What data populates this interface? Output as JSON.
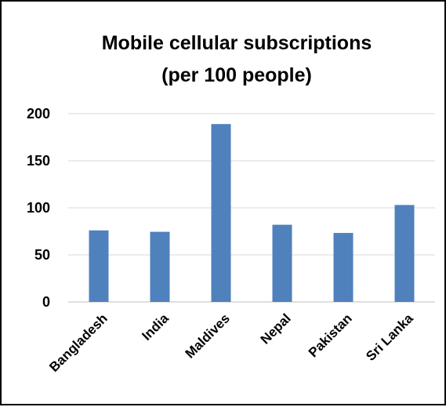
{
  "chart_data": {
    "type": "bar",
    "title_lines": [
      "Mobile cellular subscriptions",
      "(per 100 people)"
    ],
    "categories": [
      "Bangladesh",
      "India",
      "Maldives",
      "Nepal",
      "Pakistan",
      "Sri Lanka"
    ],
    "values": [
      76,
      74.5,
      189,
      82,
      73.3,
      103
    ],
    "yticks": [
      0,
      50,
      100,
      150,
      200
    ],
    "ylim": [
      0,
      200
    ],
    "grid": true,
    "legend": "none",
    "colors": {
      "bar": "#4f81bd",
      "grid": "#d9d9d9",
      "axis": "#bfbfbf",
      "frame": "#000000"
    }
  }
}
